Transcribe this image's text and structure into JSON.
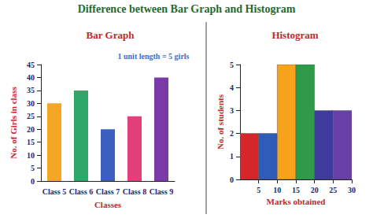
{
  "title": "Difference between Bar Graph and Histogram",
  "chart_data": [
    {
      "type": "bar",
      "title": "Bar Graph",
      "annotation": "1 unit length = 5 girls",
      "xlabel": "Classes",
      "ylabel": "No. of Girls in class",
      "categories": [
        "Class 5",
        "Class 6",
        "Class 7",
        "Class 8",
        "Class 9"
      ],
      "values": [
        30,
        35,
        20,
        25,
        40
      ],
      "colors": [
        "#f5a623",
        "#2ea86a",
        "#3c5fbf",
        "#e43f7a",
        "#7a3aa8"
      ],
      "ylim": [
        0,
        45
      ],
      "yticks": [
        0,
        5,
        10,
        15,
        20,
        25,
        30,
        35,
        40,
        45
      ],
      "grid": false
    },
    {
      "type": "histogram",
      "title": "Histogram",
      "xlabel": "Marks obtained",
      "ylabel": "No. of students",
      "bins": [
        0,
        5,
        10,
        15,
        20,
        25,
        30
      ],
      "values": [
        2,
        2,
        5,
        5,
        3,
        3
      ],
      "colors": [
        "#d7262a",
        "#2e5cb8",
        "#f6a21b",
        "#2e9a4a",
        "#3f3a9e",
        "#6a3fa8"
      ],
      "xlim": [
        0,
        30
      ],
      "xticks": [
        5,
        10,
        15,
        20,
        25,
        30
      ],
      "ylim": [
        0,
        5
      ],
      "yticks": [
        0,
        1,
        2,
        3,
        4,
        5
      ],
      "grid": false
    }
  ]
}
